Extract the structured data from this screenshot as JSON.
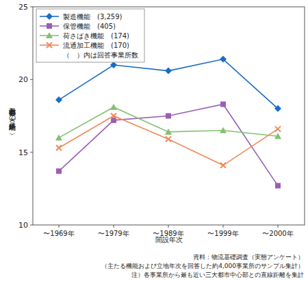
{
  "chart_data": {
    "type": "line",
    "x_label": "開設年次",
    "y_label": "三大都市中心部との平均距離（km）",
    "categories": [
      "〜1969年",
      "〜1979年",
      "〜1989年",
      "〜1999年",
      "〜2000年"
    ],
    "series": [
      {
        "name": "製造機能　(3,259)",
        "color": "#1a6cc8",
        "marker": "diamond",
        "values": [
          18.6,
          21.0,
          20.6,
          21.4,
          18.0
        ]
      },
      {
        "name": "保管機能　(405)",
        "color": "#9a5fb4",
        "marker": "square",
        "values": [
          13.7,
          17.2,
          17.5,
          18.3,
          12.7
        ]
      },
      {
        "name": "荷さばき機能　(174)",
        "color": "#85bf72",
        "marker": "triangle",
        "values": [
          16.0,
          18.1,
          16.4,
          16.5,
          16.1
        ]
      },
      {
        "name": "流通加工機能　(170)",
        "color": "#ef8a5a",
        "marker": "x",
        "values": [
          15.3,
          17.5,
          15.9,
          14.1,
          16.6
        ]
      }
    ],
    "ylim": [
      10,
      25
    ],
    "yticks": [
      10,
      15,
      20,
      25
    ],
    "grid": false,
    "legend": "upper left",
    "annotations": [
      "（　）内は回答事業所数"
    ],
    "notes": [
      "資料：物流基礎調査（実態アンケート）",
      "（主たる機能および立地年次を回答した約4,000事業所のサンプル集計）",
      "注）各事業所から最も近い三大都市中心部との直線距離を集計"
    ]
  }
}
